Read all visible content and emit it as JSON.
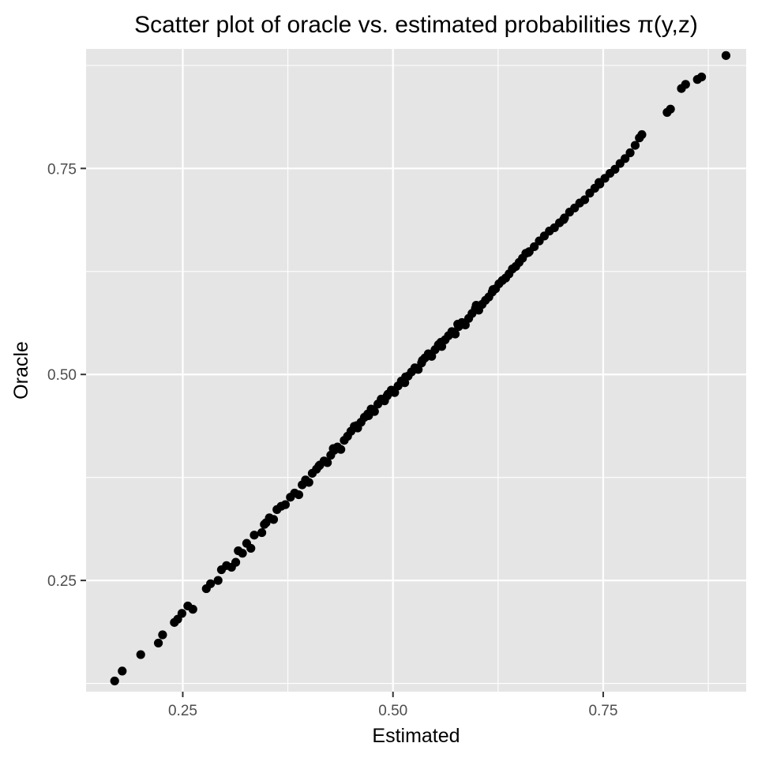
{
  "chart_data": {
    "type": "scatter",
    "title": "Scatter plot of oracle vs. estimated probabilities π(y,z)",
    "xlabel": "Estimated",
    "ylabel": "Oracle",
    "xlim": [
      0.135,
      0.92
    ],
    "ylim": [
      0.115,
      0.895
    ],
    "x_ticks": [
      0.25,
      0.5,
      0.75
    ],
    "x_tick_labels": [
      "0.25",
      "0.50",
      "0.75"
    ],
    "y_ticks": [
      0.25,
      0.5,
      0.75
    ],
    "y_tick_labels": [
      "0.25",
      "0.50",
      "0.75"
    ],
    "grid": true,
    "background_color": "#e5e5e5",
    "point_color": "#000000",
    "series": [
      {
        "points": [
          [
            0.169,
            0.128
          ],
          [
            0.178,
            0.14
          ],
          [
            0.2,
            0.16
          ],
          [
            0.221,
            0.174
          ],
          [
            0.226,
            0.184
          ],
          [
            0.24,
            0.199
          ],
          [
            0.244,
            0.203
          ],
          [
            0.249,
            0.21
          ],
          [
            0.256,
            0.219
          ],
          [
            0.262,
            0.215
          ],
          [
            0.278,
            0.24
          ],
          [
            0.283,
            0.246
          ],
          [
            0.292,
            0.25
          ],
          [
            0.296,
            0.263
          ],
          [
            0.302,
            0.268
          ],
          [
            0.308,
            0.266
          ],
          [
            0.313,
            0.272
          ],
          [
            0.316,
            0.286
          ],
          [
            0.321,
            0.283
          ],
          [
            0.326,
            0.295
          ],
          [
            0.331,
            0.289
          ],
          [
            0.335,
            0.305
          ],
          [
            0.344,
            0.308
          ],
          [
            0.349,
            0.32
          ],
          [
            0.353,
            0.326
          ],
          [
            0.358,
            0.324
          ],
          [
            0.362,
            0.336
          ],
          [
            0.367,
            0.34
          ],
          [
            0.372,
            0.342
          ],
          [
            0.378,
            0.351
          ],
          [
            0.383,
            0.356
          ],
          [
            0.388,
            0.354
          ],
          [
            0.392,
            0.366
          ],
          [
            0.396,
            0.372
          ],
          [
            0.4,
            0.369
          ],
          [
            0.404,
            0.38
          ],
          [
            0.409,
            0.385
          ],
          [
            0.413,
            0.39
          ],
          [
            0.418,
            0.395
          ],
          [
            0.422,
            0.393
          ],
          [
            0.426,
            0.402
          ],
          [
            0.43,
            0.408
          ],
          [
            0.434,
            0.412
          ],
          [
            0.438,
            0.409
          ],
          [
            0.442,
            0.42
          ],
          [
            0.446,
            0.425
          ],
          [
            0.45,
            0.431
          ],
          [
            0.454,
            0.437
          ],
          [
            0.458,
            0.435
          ],
          [
            0.462,
            0.442
          ],
          [
            0.466,
            0.448
          ],
          [
            0.47,
            0.452
          ],
          [
            0.474,
            0.458
          ],
          [
            0.478,
            0.455
          ],
          [
            0.482,
            0.464
          ],
          [
            0.486,
            0.47
          ],
          [
            0.49,
            0.468
          ],
          [
            0.494,
            0.476
          ],
          [
            0.498,
            0.481
          ],
          [
            0.502,
            0.478
          ],
          [
            0.506,
            0.486
          ],
          [
            0.51,
            0.492
          ],
          [
            0.514,
            0.49
          ],
          [
            0.518,
            0.498
          ],
          [
            0.522,
            0.503
          ],
          [
            0.526,
            0.508
          ],
          [
            0.53,
            0.506
          ],
          [
            0.534,
            0.514
          ],
          [
            0.538,
            0.52
          ],
          [
            0.542,
            0.525
          ],
          [
            0.546,
            0.522
          ],
          [
            0.55,
            0.53
          ],
          [
            0.554,
            0.536
          ],
          [
            0.558,
            0.534
          ],
          [
            0.562,
            0.542
          ],
          [
            0.566,
            0.547
          ],
          [
            0.57,
            0.552
          ],
          [
            0.574,
            0.549
          ],
          [
            0.578,
            0.558
          ],
          [
            0.582,
            0.563
          ],
          [
            0.586,
            0.56
          ],
          [
            0.59,
            0.568
          ],
          [
            0.594,
            0.574
          ],
          [
            0.598,
            0.58
          ],
          [
            0.602,
            0.578
          ],
          [
            0.606,
            0.585
          ],
          [
            0.61,
            0.59
          ],
          [
            0.614,
            0.594
          ],
          [
            0.618,
            0.6
          ],
          [
            0.622,
            0.604
          ],
          [
            0.626,
            0.61
          ],
          [
            0.63,
            0.614
          ],
          [
            0.634,
            0.617
          ],
          [
            0.638,
            0.622
          ],
          [
            0.642,
            0.628
          ],
          [
            0.646,
            0.631
          ],
          [
            0.65,
            0.636
          ],
          [
            0.654,
            0.641
          ],
          [
            0.658,
            0.647
          ],
          [
            0.662,
            0.649
          ],
          [
            0.668,
            0.655
          ],
          [
            0.674,
            0.662
          ],
          [
            0.68,
            0.668
          ],
          [
            0.686,
            0.674
          ],
          [
            0.692,
            0.678
          ],
          [
            0.698,
            0.684
          ],
          [
            0.704,
            0.69
          ],
          [
            0.71,
            0.697
          ],
          [
            0.716,
            0.702
          ],
          [
            0.722,
            0.708
          ],
          [
            0.728,
            0.712
          ],
          [
            0.734,
            0.72
          ],
          [
            0.74,
            0.726
          ],
          [
            0.746,
            0.731
          ],
          [
            0.752,
            0.738
          ],
          [
            0.758,
            0.744
          ],
          [
            0.764,
            0.749
          ],
          [
            0.77,
            0.756
          ],
          [
            0.776,
            0.762
          ],
          [
            0.782,
            0.769
          ],
          [
            0.788,
            0.778
          ],
          [
            0.793,
            0.787
          ],
          [
            0.796,
            0.791
          ],
          [
            0.826,
            0.818
          ],
          [
            0.83,
            0.822
          ],
          [
            0.843,
            0.847
          ],
          [
            0.848,
            0.852
          ],
          [
            0.862,
            0.858
          ],
          [
            0.867,
            0.861
          ],
          [
            0.896,
            0.887
          ],
          [
            0.347,
            0.318
          ],
          [
            0.412,
            0.389
          ],
          [
            0.457,
            0.438
          ],
          [
            0.493,
            0.474
          ],
          [
            0.535,
            0.517
          ],
          [
            0.577,
            0.561
          ],
          [
            0.619,
            0.603
          ],
          [
            0.661,
            0.648
          ],
          [
            0.703,
            0.688
          ],
          [
            0.745,
            0.733
          ],
          [
            0.429,
            0.41
          ],
          [
            0.471,
            0.45
          ],
          [
            0.515,
            0.497
          ],
          [
            0.557,
            0.539
          ],
          [
            0.599,
            0.584
          ]
        ]
      }
    ]
  }
}
